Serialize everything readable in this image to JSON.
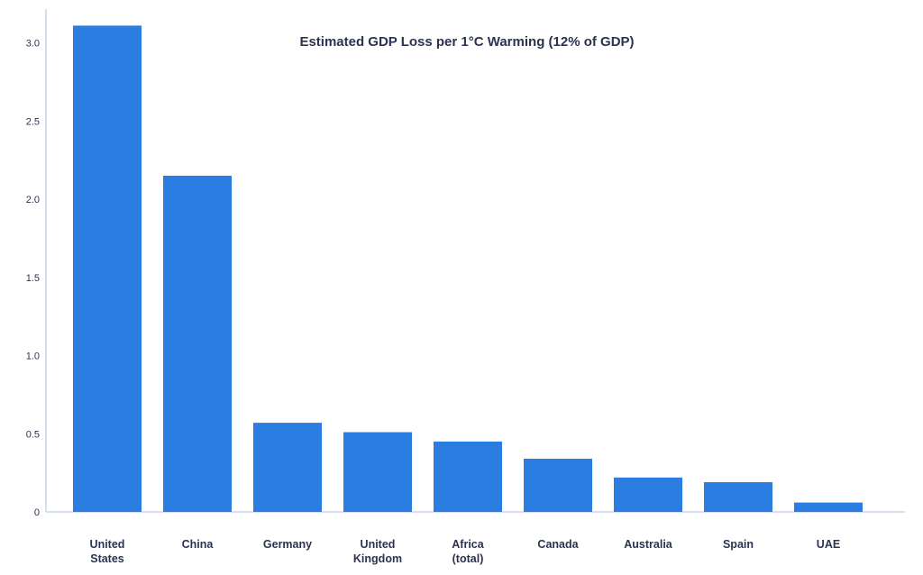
{
  "chart_data": {
    "type": "bar",
    "title": "Estimated GDP Loss per 1°C Warming (12% of GDP)",
    "xlabel": "",
    "ylabel": "",
    "ylim": [
      0,
      3.2
    ],
    "yticks": [
      "0",
      "0.5",
      "1.0",
      "1.5",
      "2.0",
      "2.5",
      "3.0"
    ],
    "ytick_values": [
      0,
      0.5,
      1.0,
      1.5,
      2.0,
      2.5,
      3.0
    ],
    "categories": [
      [
        "United",
        "States"
      ],
      [
        "China"
      ],
      [
        "Germany"
      ],
      [
        "United",
        "Kingdom"
      ],
      [
        "Africa",
        "(total)"
      ],
      [
        "Canada"
      ],
      [
        "Australia"
      ],
      [
        "Spain"
      ],
      [
        "UAE"
      ]
    ],
    "values": [
      3.11,
      2.15,
      0.57,
      0.51,
      0.45,
      0.34,
      0.22,
      0.19,
      0.06
    ],
    "grid": false,
    "legend": "none",
    "bar_color": "#2b7de1"
  }
}
